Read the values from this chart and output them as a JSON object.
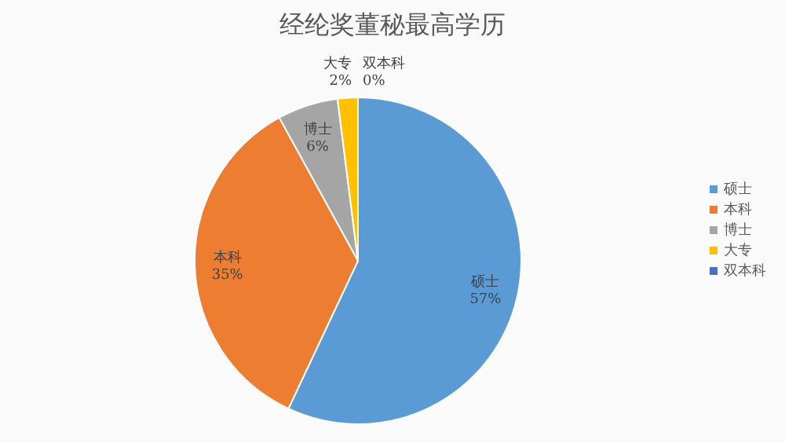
{
  "chart_data": {
    "type": "pie",
    "title": "经纶奖董秘最高学历",
    "categories": [
      "硕士",
      "本科",
      "博士",
      "大专",
      "双本科"
    ],
    "values": [
      57,
      35,
      6,
      2,
      0
    ],
    "colors": [
      "#5b9bd5",
      "#ed7d31",
      "#a5a5a5",
      "#ffc000",
      "#4472c4"
    ],
    "value_labels": [
      "57%",
      "35%",
      "6%",
      "2%",
      "0%"
    ],
    "legend": "right"
  }
}
